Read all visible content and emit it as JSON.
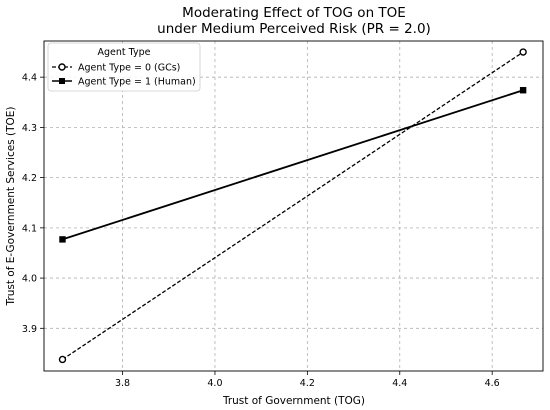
{
  "chart_data": {
    "type": "line",
    "title": [
      "Moderating Effect of TOG on TOE",
      "under Medium Perceived Risk (PR = 2.0)"
    ],
    "xlabel": "Trust of Government (TOG)",
    "ylabel": "Trust of E-Government Services (TOE)",
    "xlim": [
      3.63,
      4.71
    ],
    "ylim": [
      3.815,
      4.472
    ],
    "xticks": [
      3.8,
      4.0,
      4.2,
      4.4,
      4.6
    ],
    "xtick_labels": [
      "3.8",
      "4.0",
      "4.2",
      "4.4",
      "4.6"
    ],
    "yticks": [
      3.9,
      4.0,
      4.1,
      4.2,
      4.3,
      4.4
    ],
    "ytick_labels": [
      "3.9",
      "4.0",
      "4.1",
      "4.2",
      "4.3",
      "4.4"
    ],
    "grid": true,
    "legend": {
      "title": "Agent Type",
      "placement": "top-left"
    },
    "series": [
      {
        "name": "Agent Type = 0 (GCs)",
        "x": [
          3.67,
          4.667
        ],
        "y": [
          3.838,
          4.45
        ],
        "color": "#000000",
        "style": "dashed",
        "marker": "open-circle"
      },
      {
        "name": "Agent Type = 1 (Human)",
        "x": [
          3.67,
          4.667
        ],
        "y": [
          4.077,
          4.374
        ],
        "color": "#000000",
        "style": "solid",
        "marker": "filled-square"
      }
    ]
  }
}
